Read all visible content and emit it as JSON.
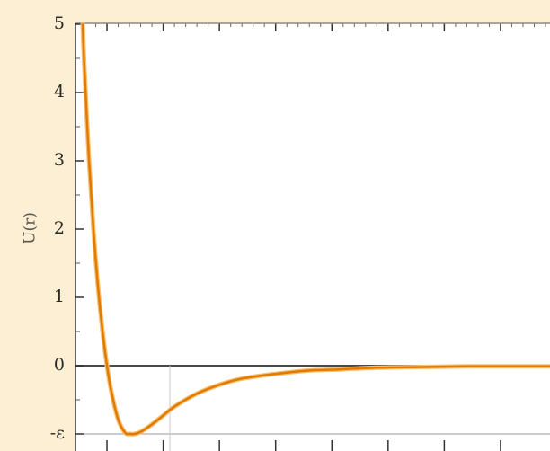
{
  "chart_data": {
    "type": "line",
    "title": "",
    "xlabel": "",
    "ylabel": "U(r)",
    "y_tick_labels": [
      "5",
      "4",
      "3",
      "2",
      "1",
      "0",
      "-ε"
    ],
    "y_tick_values": [
      5,
      4,
      3,
      2,
      1,
      0,
      -1
    ],
    "xlim": [
      0.86,
      2.97
    ],
    "ylim": [
      -1,
      5
    ],
    "x_major_ticks": [
      1.0,
      1.25,
      1.5,
      1.75,
      2.0,
      2.25,
      2.5,
      2.75
    ],
    "grid": false,
    "zero_line": true,
    "epsilon_line": true,
    "series": [
      {
        "function": "lennard-jones",
        "epsilon": 1,
        "sigma": 1,
        "x": [
          0.892,
          0.9,
          0.92,
          0.94,
          0.96,
          0.98,
          1.0,
          1.02,
          1.05,
          1.08,
          1.1,
          1.122,
          1.15,
          1.2,
          1.25,
          1.3,
          1.4,
          1.5,
          1.6,
          1.75,
          1.9,
          2.0,
          2.2,
          2.4,
          2.6,
          2.8,
          2.97
        ],
        "y": [
          5.0,
          4.34,
          3.02,
          1.98,
          1.16,
          0.51,
          0.0,
          -0.39,
          -0.79,
          -0.98,
          -1.0,
          -1.0,
          -0.97,
          -0.86,
          -0.73,
          -0.6,
          -0.41,
          -0.28,
          -0.19,
          -0.12,
          -0.07,
          -0.06,
          -0.03,
          -0.02,
          -0.01,
          -0.01,
          -0.01
        ],
        "color": "#e07a00"
      }
    ]
  }
}
